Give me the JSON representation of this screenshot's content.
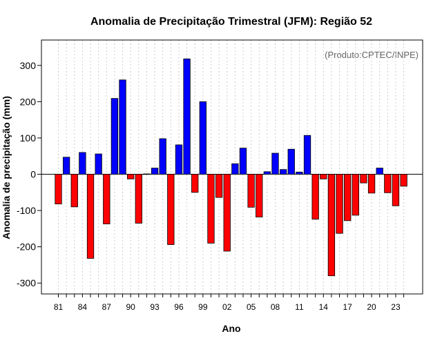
{
  "chart_data": {
    "type": "bar",
    "title": "Anomalia de Precipitação Trimestral (JFM): Região 52",
    "xlabel": "Ano",
    "ylabel": "Anomalia de precipitação (mm)",
    "annotation": "(Produto:CPTEC/INPE)",
    "ylim": [
      -330,
      370
    ],
    "yticks": [
      -300,
      -200,
      -100,
      0,
      100,
      200,
      300
    ],
    "grid": "vertical dotted",
    "colors": {
      "positive": "#0000ff",
      "negative": "#ff0000",
      "gridline": "#cccccc",
      "zeroline": "#000000"
    },
    "xtick_labels": [
      "81",
      "84",
      "87",
      "90",
      "93",
      "96",
      "99",
      "02",
      "05",
      "08",
      "11",
      "14",
      "17",
      "20",
      "23"
    ],
    "categories": [
      "1981",
      "1982",
      "1983",
      "1984",
      "1985",
      "1986",
      "1987",
      "1988",
      "1989",
      "1990",
      "1991",
      "1992",
      "1993",
      "1994",
      "1995",
      "1996",
      "1997",
      "1998",
      "1999",
      "2000",
      "2001",
      "2002",
      "2003",
      "2004",
      "2005",
      "2006",
      "2007",
      "2008",
      "2009",
      "2010",
      "2011",
      "2012",
      "2013",
      "2014",
      "2015",
      "2016",
      "2017",
      "2018",
      "2019",
      "2020",
      "2021",
      "2022",
      "2023",
      "2024"
    ],
    "values": [
      -82,
      47,
      -90,
      60,
      -232,
      56,
      -137,
      209,
      260,
      -13,
      -135,
      1,
      17,
      98,
      -194,
      81,
      318,
      -50,
      200,
      -190,
      -64,
      -212,
      29,
      72,
      -91,
      -118,
      7,
      58,
      13,
      69,
      6,
      107,
      -124,
      -13,
      -280,
      -163,
      -128,
      -113,
      -24,
      -52,
      17,
      -51,
      -87,
      -33
    ]
  }
}
